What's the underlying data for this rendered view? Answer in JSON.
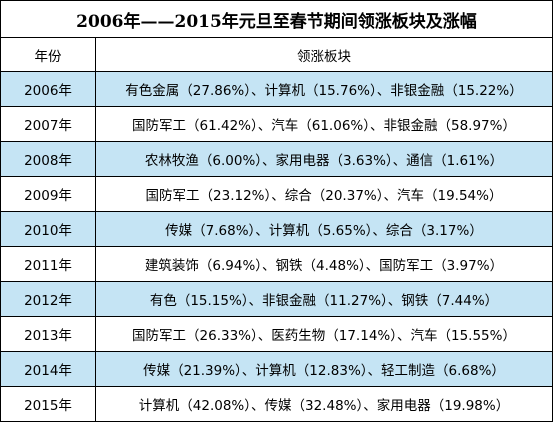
{
  "table": {
    "title": "2006年——2015年元旦至春节期间领涨板块及涨幅",
    "headers": {
      "year": "年份",
      "sectors": "领涨板块"
    },
    "rows": [
      {
        "year": "2006年",
        "sectors": "有色金属（27.86%）、计算机（15.76%）、非银金融（15.22%）"
      },
      {
        "year": "2007年",
        "sectors": "国防军工（61.42%）、汽车（61.06%）、非银金融（58.97%）"
      },
      {
        "year": "2008年",
        "sectors": "农林牧渔（6.00%）、家用电器（3.63%）、通信（1.61%）"
      },
      {
        "year": "2009年",
        "sectors": "国防军工（23.12%）、综合（20.37%）、汽车（19.54%）"
      },
      {
        "year": "2010年",
        "sectors": "传媒（7.68%）、计算机（5.65%）、综合（3.17%）"
      },
      {
        "year": "2011年",
        "sectors": "建筑装饰（6.94%）、钢铁（4.48%）、国防军工（3.97%）"
      },
      {
        "year": "2012年",
        "sectors": "有色（15.15%）、非银金融（11.27%）、钢铁（7.44%）"
      },
      {
        "year": "2013年",
        "sectors": "国防军工（26.33%）、医药生物（17.14%）、汽车（15.55%）"
      },
      {
        "year": "2014年",
        "sectors": "传媒（21.39%）、计算机（12.83%）、轻工制造（6.68%）"
      },
      {
        "year": "2015年",
        "sectors": "计算机（42.08%）、传媒（32.48%）、家用电器（19.98%）"
      }
    ]
  },
  "colors": {
    "shaded_row": "#c5e4f4",
    "plain_row": "#ffffff",
    "border": "#000000"
  }
}
